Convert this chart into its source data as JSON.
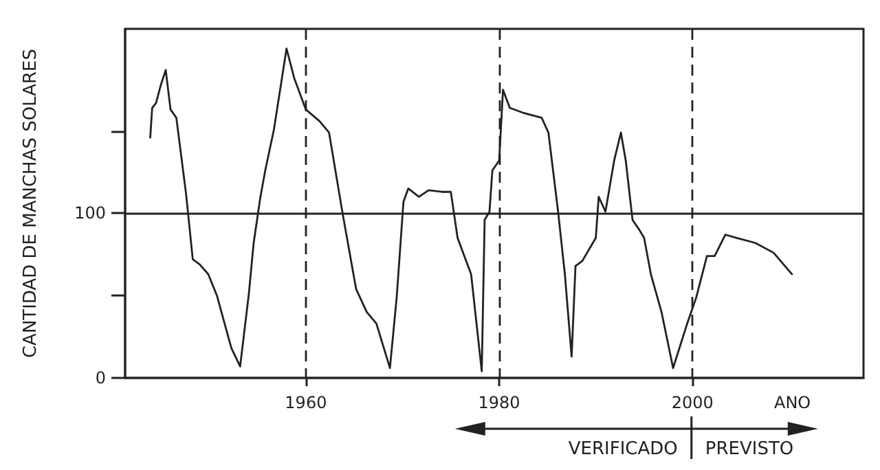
{
  "chart_data": {
    "type": "line",
    "ylabel": "CANTIDAD DE MANCHAS SOLARES",
    "xlabel": "ANO",
    "annotations": [
      "VERIFICADO",
      "PREVISTO"
    ],
    "xlim": [
      1941.3,
      2017.7
    ],
    "xticks": [
      1960,
      1980,
      2000
    ],
    "ylim": [
      0,
      212
    ],
    "yticks": [
      0,
      {
        "value": 50,
        "label": null
      },
      100,
      {
        "value": 150,
        "label": null
      }
    ],
    "grid": "x",
    "marker": "none",
    "line_style": "solid",
    "ref_lines": [
      {
        "axis": "y",
        "value": 100,
        "label": null,
        "color": "#222222",
        "line_style": "solid"
      }
    ],
    "series": [
      {
        "color": "#222222",
        "x": [
          1943.9,
          1944.1,
          1944.5,
          1945.0,
          1945.5,
          1946.0,
          1946.6,
          1947.6,
          1948.3,
          1949.0,
          1949.9,
          1950.8,
          1951.5,
          1952.3,
          1953.2,
          1954.1,
          1954.6,
          1955.3,
          1955.8,
          1956.7,
          1958.0,
          1958.8,
          1960.0,
          1961.4,
          1962.4,
          1962.8,
          1963.8,
          1965.2,
          1966.3,
          1967.3,
          1968.7,
          1969.4,
          1970.1,
          1970.6,
          1971.7,
          1972.7,
          1974.1,
          1974.5,
          1975.0,
          1975.7,
          1976.4,
          1977.1,
          1978.2,
          1978.5,
          1979.0,
          1979.3,
          1980.0,
          1980.4,
          1981.1,
          1982.5,
          1984.4,
          1985.1,
          1986.1,
          1986.8,
          1987.5,
          1987.9,
          1988.6,
          1990.0,
          1990.3,
          1991.0,
          1991.9,
          1992.6,
          1993.1,
          1993.8,
          1994.5,
          1995.0,
          1995.7,
          1996.8,
          1998.0,
          1999.4,
          2000.4,
          2001.5,
          2002.3,
          2003.4,
          2004.6,
          2006.5,
          2008.4,
          2010.3
        ],
        "values": [
          146,
          164,
          167,
          178,
          187,
          163,
          158,
          112,
          72,
          69,
          63,
          50,
          35,
          18,
          7,
          51,
          82,
          110,
          126,
          151,
          200,
          182,
          163,
          156,
          149,
          135,
          100,
          54,
          40,
          33,
          6,
          49,
          107,
          115,
          110,
          114,
          113,
          113,
          113,
          85,
          74,
          63,
          4,
          96,
          101,
          126,
          132,
          175,
          164,
          161,
          158,
          149,
          101,
          63,
          13,
          68,
          71,
          85,
          110,
          101,
          132,
          149,
          132,
          96,
          90,
          85,
          63,
          40,
          6,
          32,
          49,
          74,
          74,
          87,
          85,
          82,
          76,
          63
        ]
      }
    ]
  }
}
